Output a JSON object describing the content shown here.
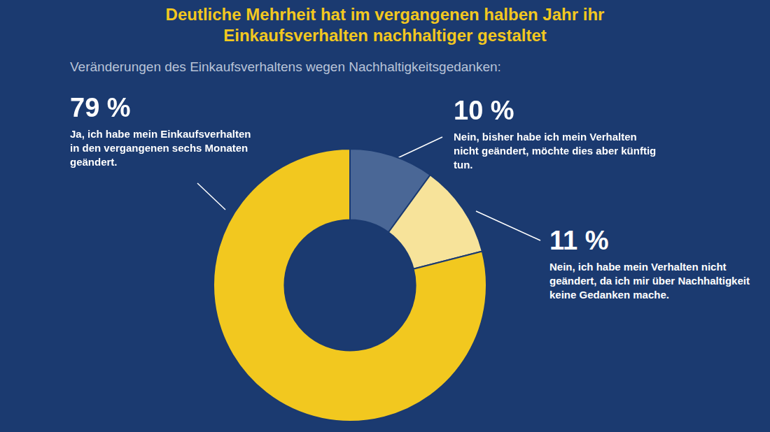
{
  "chart_data": {
    "type": "doughnut",
    "title": "Deutliche Mehrheit hat im vergangenen halben Jahr ihr Einkaufsverhalten nachhaltiger gestaltet",
    "subtitle": "Veränderungen des Einkaufsverhaltens wegen Nachhaltigkeitsgedanken:",
    "categories": [
      "Nein, bisher habe ich mein Verhalten nicht geändert, möchte dies aber künftig tun.",
      "Nein, ich habe mein Verhalten nicht geändert, da ich mir über Nachhaltigkeit keine Gedanken mache.",
      "Ja, ich habe mein Einkaufsverhalten in den vergangenen sechs Monaten geändert."
    ],
    "values": [
      10,
      11,
      79
    ],
    "value_labels": [
      "10 %",
      "11 %",
      "79 %"
    ],
    "colors": [
      "#4a6796",
      "#f7e39a",
      "#f2c81f"
    ]
  }
}
